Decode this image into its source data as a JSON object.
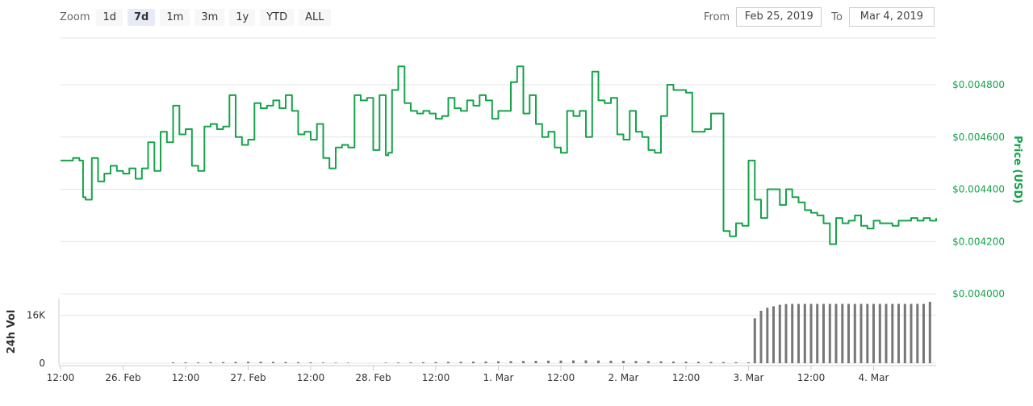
{
  "controls": {
    "zoom_label": "Zoom",
    "zoom_buttons": [
      "1d",
      "7d",
      "1m",
      "3m",
      "1y",
      "YTD",
      "ALL"
    ],
    "active_zoom": "7d",
    "from_label": "From",
    "from_value": "Feb 25, 2019",
    "to_label": "To",
    "to_value": "Mar 4, 2019"
  },
  "colors": {
    "price_line": "#16a34a",
    "volume_bars": "#777777",
    "grid": "#e6e6e6"
  },
  "chart_data": [
    {
      "type": "line",
      "ylabel": "Price (USD)",
      "ylim": [
        0.004,
        0.0049
      ],
      "y_ticks": [
        "$0.004000",
        "$0.004200",
        "$0.004400",
        "$0.004600",
        "$0.004800"
      ],
      "y_tick_values": [
        0.004,
        0.0042,
        0.0044,
        0.0046,
        0.0048
      ],
      "x_tick_labels": [
        "12:00",
        "26. Feb",
        "12:00",
        "27. Feb",
        "12:00",
        "28. Feb",
        "12:00",
        "1. Mar",
        "12:00",
        "2. Mar",
        "12:00",
        "3. Mar",
        "12:00",
        "4. Mar"
      ],
      "x": [
        0,
        0.1,
        0.15,
        0.18,
        0.2,
        0.25,
        0.3,
        0.35,
        0.4,
        0.45,
        0.5,
        0.55,
        0.6,
        0.65,
        0.7,
        0.75,
        0.8,
        0.85,
        0.9,
        0.95,
        1.0,
        1.05,
        1.1,
        1.15,
        1.2,
        1.25,
        1.3,
        1.35,
        1.4,
        1.45,
        1.5,
        1.55,
        1.6,
        1.65,
        1.7,
        1.75,
        1.8,
        1.85,
        1.9,
        1.95,
        2.0,
        2.05,
        2.1,
        2.15,
        2.2,
        2.25,
        2.3,
        2.35,
        2.4,
        2.45,
        2.5,
        2.55,
        2.6,
        2.62,
        2.65,
        2.7,
        2.75,
        2.8,
        2.85,
        2.9,
        2.95,
        3.0,
        3.05,
        3.1,
        3.15,
        3.2,
        3.25,
        3.3,
        3.35,
        3.4,
        3.45,
        3.5,
        3.55,
        3.6,
        3.65,
        3.7,
        3.75,
        3.8,
        3.85,
        3.9,
        3.95,
        4.0,
        4.05,
        4.1,
        4.15,
        4.2,
        4.25,
        4.3,
        4.35,
        4.4,
        4.45,
        4.5,
        4.55,
        4.6,
        4.65,
        4.7,
        4.75,
        4.8,
        4.85,
        4.9,
        4.95,
        5.0,
        5.05,
        5.1,
        5.15,
        5.2,
        5.25,
        5.3,
        5.35,
        5.4,
        5.45,
        5.5,
        5.55,
        5.6,
        5.65,
        5.7,
        5.75,
        5.8,
        5.85,
        5.9,
        5.95,
        6.0,
        6.05,
        6.1,
        6.15,
        6.2,
        6.25,
        6.3,
        6.35,
        6.4,
        6.45,
        6.5,
        6.55,
        6.6,
        6.65,
        6.7,
        6.75,
        6.8,
        6.85,
        6.9,
        6.95,
        7.0
      ],
      "series": [
        {
          "values": [
            0.00451,
            0.00452,
            0.00451,
            0.00437,
            0.00436,
            0.00452,
            0.00443,
            0.00446,
            0.00449,
            0.00447,
            0.00446,
            0.00448,
            0.00444,
            0.00448,
            0.00458,
            0.00447,
            0.00462,
            0.00458,
            0.00472,
            0.00461,
            0.00463,
            0.00449,
            0.00447,
            0.00464,
            0.00465,
            0.00463,
            0.00464,
            0.00476,
            0.0046,
            0.00457,
            0.00459,
            0.00473,
            0.00471,
            0.00472,
            0.00474,
            0.00471,
            0.00476,
            0.0047,
            0.00461,
            0.00462,
            0.00459,
            0.00465,
            0.00452,
            0.00448,
            0.00456,
            0.00457,
            0.00456,
            0.00476,
            0.00474,
            0.00475,
            0.00455,
            0.00476,
            0.00453,
            0.00454,
            0.00478,
            0.00487,
            0.00473,
            0.0047,
            0.00469,
            0.0047,
            0.00469,
            0.00467,
            0.00468,
            0.00475,
            0.00471,
            0.0047,
            0.00474,
            0.00472,
            0.00476,
            0.00474,
            0.00467,
            0.0047,
            0.0047,
            0.00481,
            0.00487,
            0.00469,
            0.00476,
            0.00465,
            0.0046,
            0.00462,
            0.00456,
            0.00454,
            0.0047,
            0.00468,
            0.0047,
            0.0046,
            0.00485,
            0.00474,
            0.00473,
            0.00475,
            0.00461,
            0.00459,
            0.0047,
            0.00462,
            0.0046,
            0.00455,
            0.00454,
            0.00468,
            0.0048,
            0.00478,
            0.00478,
            0.00477,
            0.00462,
            0.00462,
            0.00463,
            0.00469,
            0.00469,
            0.00424,
            0.00422,
            0.00427,
            0.00426,
            0.00451,
            0.00436,
            0.00429,
            0.0044,
            0.0044,
            0.00434,
            0.0044,
            0.00437,
            0.00435,
            0.00432,
            0.00431,
            0.0043,
            0.00427,
            0.00419,
            0.00429,
            0.00427,
            0.00428,
            0.0043,
            0.00426,
            0.00425,
            0.00428,
            0.00427,
            0.00427,
            0.00426,
            0.00428,
            0.00428,
            0.00429,
            0.00428,
            0.00429,
            0.00428,
            0.00429
          ]
        }
      ]
    },
    {
      "type": "bar",
      "ylabel": "24h Vol",
      "y_ticks": [
        "0",
        "16K"
      ],
      "y_tick_values": [
        0,
        16000
      ],
      "x": [
        0.9,
        1.0,
        1.1,
        1.2,
        1.3,
        1.4,
        1.5,
        1.6,
        1.7,
        1.8,
        1.9,
        2.0,
        2.1,
        2.2,
        2.3,
        2.6,
        2.7,
        2.8,
        2.9,
        3.0,
        3.1,
        3.2,
        3.3,
        3.4,
        3.5,
        3.6,
        3.7,
        3.8,
        3.9,
        4.0,
        4.1,
        4.2,
        4.3,
        4.4,
        4.5,
        4.6,
        4.7,
        4.8,
        4.9,
        5.0,
        5.1,
        5.2,
        5.3,
        5.4,
        5.5,
        5.55,
        5.6,
        5.65,
        5.7,
        5.75,
        5.8,
        5.85,
        5.9,
        5.95,
        6.0,
        6.05,
        6.1,
        6.15,
        6.2,
        6.25,
        6.3,
        6.35,
        6.4,
        6.45,
        6.5,
        6.55,
        6.6,
        6.65,
        6.7,
        6.75,
        6.8,
        6.85,
        6.9,
        6.95
      ],
      "values": [
        300,
        300,
        300,
        350,
        400,
        450,
        500,
        500,
        450,
        400,
        350,
        300,
        250,
        200,
        150,
        200,
        250,
        300,
        350,
        400,
        450,
        500,
        550,
        600,
        650,
        700,
        750,
        800,
        850,
        900,
        950,
        950,
        900,
        850,
        800,
        750,
        700,
        650,
        600,
        550,
        500,
        450,
        400,
        350,
        300,
        15000,
        17500,
        18500,
        19000,
        19500,
        19700,
        19800,
        19800,
        19800,
        19800,
        19800,
        19800,
        19800,
        19800,
        19800,
        19800,
        19800,
        19800,
        19800,
        19800,
        19800,
        19800,
        19800,
        19800,
        19800,
        19800,
        19800,
        19800,
        20500
      ]
    }
  ]
}
